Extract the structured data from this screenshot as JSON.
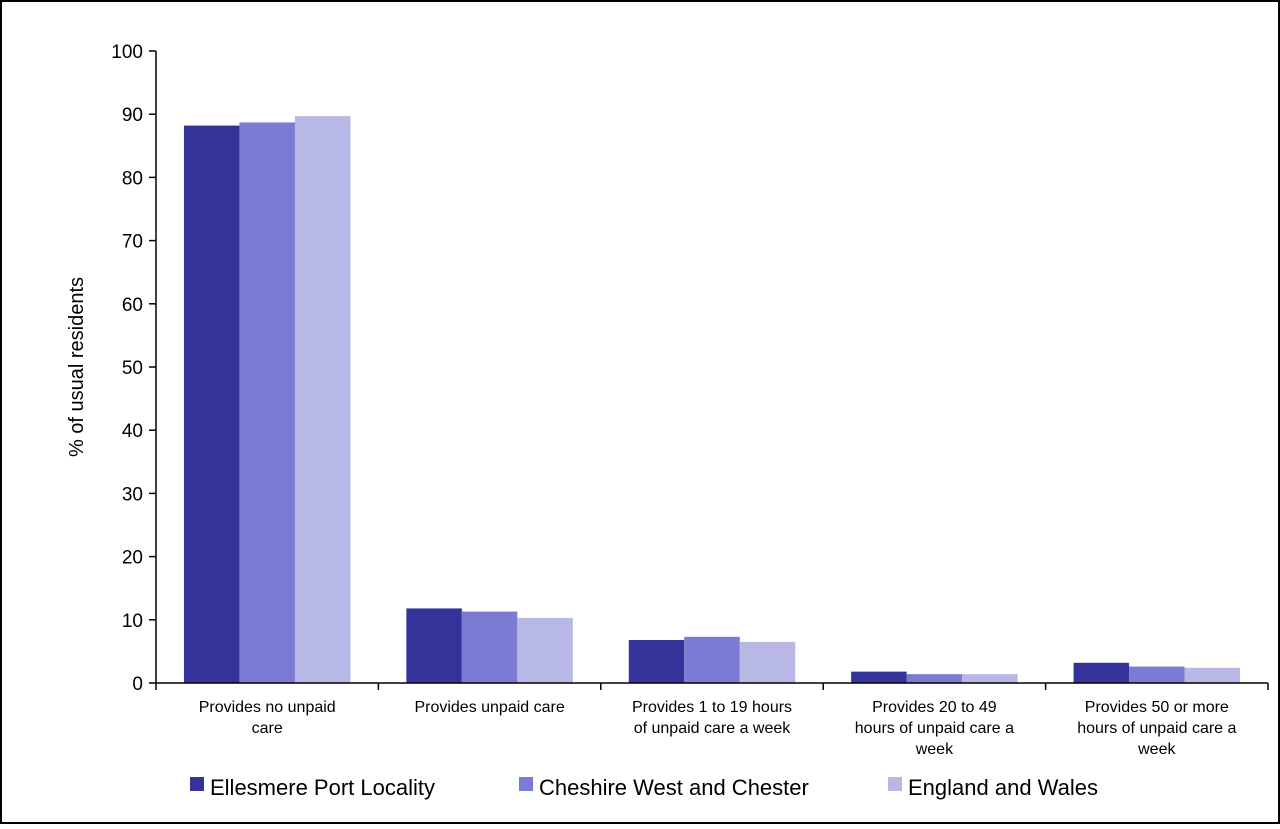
{
  "chart_data": {
    "type": "bar",
    "title": "",
    "xlabel": "",
    "ylabel": "% of usual residents",
    "ylim": [
      0,
      100
    ],
    "yticks": [
      0,
      10,
      20,
      30,
      40,
      50,
      60,
      70,
      80,
      90,
      100
    ],
    "grid": false,
    "legend_position": "bottom",
    "categories": [
      [
        "Provides no unpaid",
        "care"
      ],
      [
        "Provides unpaid care"
      ],
      [
        "Provides 1 to 19 hours",
        "of unpaid care a week"
      ],
      [
        "Provides 20 to 49",
        "hours of unpaid care a",
        "week"
      ],
      [
        "Provides 50 or more",
        "hours of unpaid care a",
        "week"
      ]
    ],
    "series": [
      {
        "name": "Ellesmere Port Locality",
        "color": "#333399",
        "values": [
          88.2,
          11.8,
          6.8,
          1.8,
          3.2
        ]
      },
      {
        "name": "Cheshire West and Chester",
        "color": "#7b7bd3",
        "values": [
          88.7,
          11.3,
          7.3,
          1.4,
          2.6
        ]
      },
      {
        "name": "England and Wales",
        "color": "#b8b8e6",
        "values": [
          89.7,
          10.3,
          6.5,
          1.4,
          2.4
        ]
      }
    ]
  }
}
